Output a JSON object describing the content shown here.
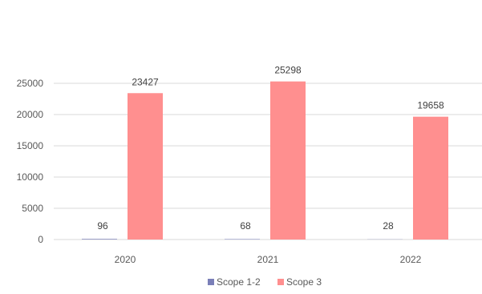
{
  "chart_data": {
    "type": "bar",
    "categories": [
      "2020",
      "2021",
      "2022"
    ],
    "series": [
      {
        "name": "Scope 1-2",
        "values": [
          96,
          68,
          28
        ],
        "color": "#7A7FB8"
      },
      {
        "name": "Scope 3",
        "values": [
          23427,
          25298,
          19658
        ],
        "color": "#FF8F8F"
      }
    ],
    "yticks": [
      "0",
      "5000",
      "10000",
      "15000",
      "20000",
      "25000"
    ],
    "ylim": [
      0,
      25000
    ],
    "grid": true,
    "legend_position": "bottom",
    "title": "",
    "xlabel": "",
    "ylabel": ""
  }
}
